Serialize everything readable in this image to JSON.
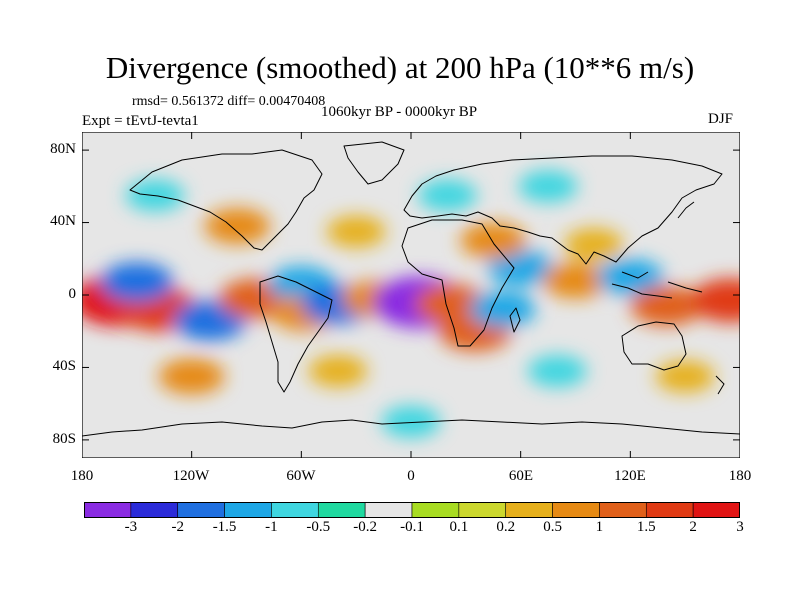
{
  "title": "Divergence (smoothed) at 200 hPa (10**6 m/s)",
  "stats": "rmsd= 0.561372 diff= 0.00470408",
  "experiment": "Expt = tEvtJ-tevta1",
  "period": "1060kyr BP - 0000kyr BP",
  "season": "DJF",
  "axes": {
    "lat_ticks": [
      {
        "label": "80N",
        "value": 80
      },
      {
        "label": "40N",
        "value": 40
      },
      {
        "label": "0",
        "value": 0
      },
      {
        "label": "40S",
        "value": -40
      },
      {
        "label": "80S",
        "value": -80
      }
    ],
    "lon_ticks": [
      {
        "label": "180",
        "value": -180
      },
      {
        "label": "120W",
        "value": -120
      },
      {
        "label": "60W",
        "value": -60
      },
      {
        "label": "0",
        "value": 0
      },
      {
        "label": "60E",
        "value": 60
      },
      {
        "label": "120E",
        "value": 120
      },
      {
        "label": "180",
        "value": 180
      }
    ],
    "lat_range": [
      -90,
      90
    ],
    "lon_range": [
      -180,
      180
    ]
  },
  "colorbar": {
    "colors": [
      "#8a2be2",
      "#2b2bd9",
      "#1f6fe0",
      "#1ea7e6",
      "#3fd6e0",
      "#20d9a0",
      "#e6e6e6",
      "#a8dc22",
      "#ccd82e",
      "#e6b01c",
      "#e68a14",
      "#e0601a",
      "#e03a14",
      "#e01414"
    ],
    "labels": [
      "-3",
      "-2",
      "-1.5",
      "-1",
      "-0.5",
      "-0.2",
      "-0.1",
      "0.1",
      "0.2",
      "0.5",
      "1",
      "1.5",
      "2",
      "3"
    ]
  },
  "chart_data": {
    "type": "heatmap",
    "title": "Divergence (smoothed) at 200 hPa (10**6 m/s)",
    "variable": "200 hPa divergence difference",
    "units": "10**6 m/s",
    "levels": [
      -3,
      -2,
      -1.5,
      -1,
      -0.5,
      -0.2,
      -0.1,
      0.1,
      0.2,
      0.5,
      1,
      1.5,
      2,
      3
    ],
    "lon_range": [
      -180,
      180
    ],
    "lat_range": [
      -90,
      90
    ],
    "anomalies": [
      {
        "lon": -160,
        "lat": -3,
        "value": 3
      },
      {
        "lon": -138,
        "lat": -8,
        "value": 2
      },
      {
        "lon": -150,
        "lat": 7,
        "value": -1.5
      },
      {
        "lon": -110,
        "lat": -14,
        "value": -1.5
      },
      {
        "lon": -85,
        "lat": -2,
        "value": 1.5
      },
      {
        "lon": -60,
        "lat": 6,
        "value": -1
      },
      {
        "lon": -58,
        "lat": -10,
        "value": 1
      },
      {
        "lon": -40,
        "lat": -5,
        "value": -1.5
      },
      {
        "lon": -20,
        "lat": -2,
        "value": 1
      },
      {
        "lon": 5,
        "lat": -4,
        "value": -3
      },
      {
        "lon": 22,
        "lat": -5,
        "value": 1.5
      },
      {
        "lon": 35,
        "lat": -20,
        "value": 1.5
      },
      {
        "lon": 50,
        "lat": -8,
        "value": -1
      },
      {
        "lon": 60,
        "lat": 15,
        "value": -1
      },
      {
        "lon": 45,
        "lat": 30,
        "value": 1
      },
      {
        "lon": 100,
        "lat": 28,
        "value": 0.5
      },
      {
        "lon": 90,
        "lat": 8,
        "value": 1
      },
      {
        "lon": 120,
        "lat": 10,
        "value": -1
      },
      {
        "lon": 140,
        "lat": -6,
        "value": 1.5
      },
      {
        "lon": 175,
        "lat": -3,
        "value": 2
      },
      {
        "lon": -140,
        "lat": 55,
        "value": -0.5
      },
      {
        "lon": -95,
        "lat": 38,
        "value": 1
      },
      {
        "lon": -30,
        "lat": 35,
        "value": 0.5
      },
      {
        "lon": 20,
        "lat": 55,
        "value": -0.5
      },
      {
        "lon": 75,
        "lat": 60,
        "value": -0.5
      },
      {
        "lon": -120,
        "lat": -45,
        "value": 1
      },
      {
        "lon": -40,
        "lat": -42,
        "value": 0.5
      },
      {
        "lon": 80,
        "lat": -42,
        "value": -0.5
      },
      {
        "lon": 150,
        "lat": -45,
        "value": 0.5
      },
      {
        "lon": 0,
        "lat": -70,
        "value": -0.5
      }
    ]
  }
}
